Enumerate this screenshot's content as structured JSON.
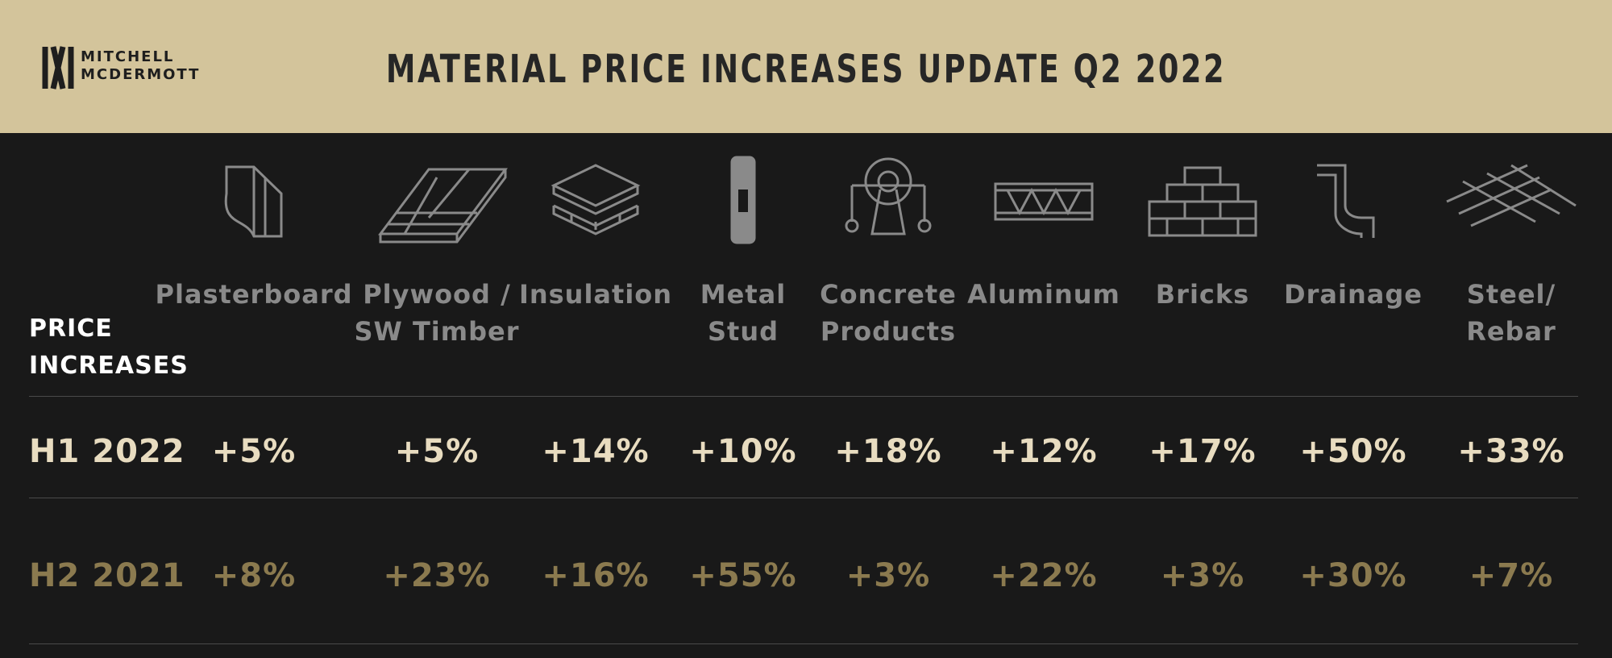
{
  "header": {
    "logo": [
      "MITCHELL",
      "MCDERMOTT"
    ],
    "title": "MATERIAL PRICE INCREASES UPDATE Q2 2022"
  },
  "table": {
    "row_header": [
      "PRICE",
      "INCREASES"
    ],
    "columns": [
      [
        "Plasterboard"
      ],
      [
        "Plywood /",
        "SW Timber"
      ],
      [
        "Insulation"
      ],
      [
        "Metal",
        "Stud"
      ],
      [
        "Concrete",
        "Products"
      ],
      [
        "Aluminum"
      ],
      [
        "Bricks"
      ],
      [
        "Drainage"
      ],
      [
        "Steel/",
        "Rebar"
      ]
    ],
    "rows": [
      {
        "label": "H1 2022",
        "values": [
          "+5%",
          "+5%",
          "+14%",
          "+10%",
          "+18%",
          "+12%",
          "+17%",
          "+50%",
          "+33%"
        ]
      },
      {
        "label": "H2 2021",
        "values": [
          "+8%",
          "+23%",
          "+16%",
          "+55%",
          "+3%",
          "+22%",
          "+3%",
          "+30%",
          "+7%"
        ]
      }
    ]
  }
}
